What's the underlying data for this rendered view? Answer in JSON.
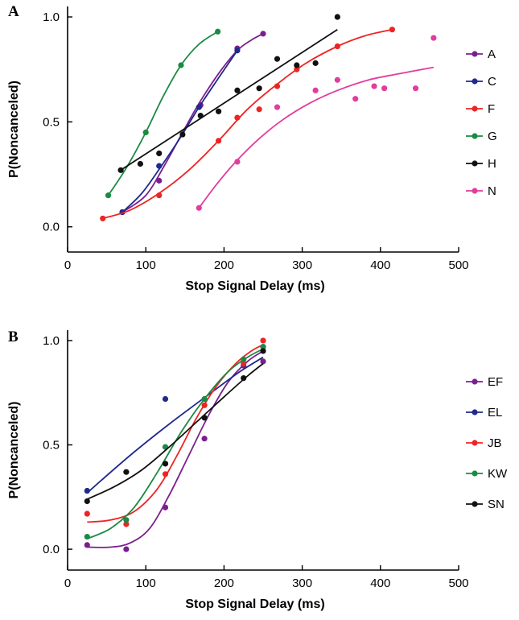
{
  "chart_data": [
    {
      "panel": "A",
      "type": "scatter",
      "xlabel": "Stop Signal Delay (ms)",
      "ylabel": "P(Noncanceled)",
      "xlim": [
        0,
        500
      ],
      "ylim": [
        -0.12,
        1.05
      ],
      "x_ticks": [
        0,
        100,
        200,
        300,
        400,
        500
      ],
      "y_ticks": [
        0.0,
        0.5,
        1.0
      ],
      "x_tick_labels": [
        "0",
        "100",
        "200",
        "300",
        "400",
        "500"
      ],
      "y_tick_labels": [
        "0.0",
        "0.5",
        "1.0"
      ],
      "grid": false,
      "legend_position": "right",
      "series": [
        {
          "name": "A",
          "color": "#7b1f8f",
          "fit": "sigmoid",
          "points": [
            [
              70,
              0.07
            ],
            [
              117,
              0.22
            ],
            [
              170,
              0.58
            ],
            [
              217,
              0.85
            ],
            [
              250,
              0.92
            ]
          ],
          "curve": [
            [
              70,
              0.07
            ],
            [
              100,
              0.15
            ],
            [
              125,
              0.3
            ],
            [
              150,
              0.47
            ],
            [
              170,
              0.6
            ],
            [
              195,
              0.74
            ],
            [
              217,
              0.84
            ],
            [
              235,
              0.89
            ],
            [
              250,
              0.92
            ]
          ]
        },
        {
          "name": "C",
          "color": "#1f2a8c",
          "fit": "sigmoid",
          "points": [
            [
              70,
              0.07
            ],
            [
              117,
              0.29
            ],
            [
              168,
              0.57
            ],
            [
              217,
              0.84
            ]
          ],
          "curve": [
            [
              70,
              0.07
            ],
            [
              95,
              0.16
            ],
            [
              120,
              0.29
            ],
            [
              145,
              0.43
            ],
            [
              168,
              0.57
            ],
            [
              195,
              0.72
            ],
            [
              217,
              0.84
            ]
          ]
        },
        {
          "name": "F",
          "color": "#ee2424",
          "fit": "sigmoid",
          "points": [
            [
              45,
              0.04
            ],
            [
              117,
              0.15
            ],
            [
              193,
              0.41
            ],
            [
              217,
              0.52
            ],
            [
              245,
              0.56
            ],
            [
              268,
              0.67
            ],
            [
              293,
              0.75
            ],
            [
              345,
              0.86
            ],
            [
              415,
              0.94
            ]
          ],
          "curve": [
            [
              45,
              0.04
            ],
            [
              80,
              0.08
            ],
            [
              117,
              0.16
            ],
            [
              155,
              0.27
            ],
            [
              193,
              0.41
            ],
            [
              230,
              0.56
            ],
            [
              268,
              0.68
            ],
            [
              305,
              0.78
            ],
            [
              345,
              0.86
            ],
            [
              380,
              0.91
            ],
            [
              415,
              0.94
            ]
          ]
        },
        {
          "name": "G",
          "color": "#1b8a43",
          "fit": "sigmoid",
          "points": [
            [
              52,
              0.15
            ],
            [
              100,
              0.45
            ],
            [
              145,
              0.77
            ],
            [
              192,
              0.93
            ]
          ],
          "curve": [
            [
              52,
              0.15
            ],
            [
              75,
              0.28
            ],
            [
              100,
              0.45
            ],
            [
              122,
              0.62
            ],
            [
              145,
              0.77
            ],
            [
              168,
              0.87
            ],
            [
              192,
              0.93
            ]
          ]
        },
        {
          "name": "H",
          "color": "#111111",
          "fit": "linear",
          "points": [
            [
              68,
              0.27
            ],
            [
              93,
              0.3
            ],
            [
              117,
              0.35
            ],
            [
              147,
              0.44
            ],
            [
              170,
              0.53
            ],
            [
              193,
              0.55
            ],
            [
              217,
              0.65
            ],
            [
              245,
              0.66
            ],
            [
              268,
              0.8
            ],
            [
              293,
              0.77
            ],
            [
              317,
              0.78
            ],
            [
              345,
              1.0
            ]
          ],
          "curve": [
            [
              68,
              0.27
            ],
            [
              345,
              0.94
            ]
          ]
        },
        {
          "name": "N",
          "color": "#e23c9c",
          "fit": "saturating",
          "points": [
            [
              168,
              0.09
            ],
            [
              217,
              0.31
            ],
            [
              268,
              0.57
            ],
            [
              317,
              0.65
            ],
            [
              345,
              0.7
            ],
            [
              368,
              0.61
            ],
            [
              392,
              0.67
            ],
            [
              405,
              0.66
            ],
            [
              445,
              0.66
            ],
            [
              468,
              0.9
            ]
          ],
          "curve": [
            [
              168,
              0.09
            ],
            [
              190,
              0.2
            ],
            [
              215,
              0.31
            ],
            [
              245,
              0.42
            ],
            [
              275,
              0.51
            ],
            [
              310,
              0.59
            ],
            [
              345,
              0.65
            ],
            [
              385,
              0.7
            ],
            [
              425,
              0.73
            ],
            [
              468,
              0.76
            ]
          ]
        }
      ]
    },
    {
      "panel": "B",
      "type": "scatter",
      "xlabel": "Stop Signal Delay (ms)",
      "ylabel": "P(Noncanceled)",
      "xlim": [
        0,
        500
      ],
      "ylim": [
        -0.1,
        1.05
      ],
      "x_ticks": [
        0,
        100,
        200,
        300,
        400,
        500
      ],
      "y_ticks": [
        0.0,
        0.5,
        1.0
      ],
      "x_tick_labels": [
        "0",
        "100",
        "200",
        "300",
        "400",
        "500"
      ],
      "y_tick_labels": [
        "0.0",
        "0.5",
        "1.0"
      ],
      "grid": false,
      "legend_position": "right",
      "series": [
        {
          "name": "EF",
          "color": "#7b1f8f",
          "fit": "sigmoid",
          "points": [
            [
              25,
              0.02
            ],
            [
              75,
              0.0
            ],
            [
              125,
              0.2
            ],
            [
              175,
              0.53
            ],
            [
              225,
              0.88
            ],
            [
              250,
              0.9
            ]
          ],
          "curve": [
            [
              25,
              0.01
            ],
            [
              55,
              0.01
            ],
            [
              80,
              0.03
            ],
            [
              105,
              0.1
            ],
            [
              130,
              0.26
            ],
            [
              155,
              0.45
            ],
            [
              180,
              0.64
            ],
            [
              205,
              0.8
            ],
            [
              230,
              0.9
            ],
            [
              250,
              0.95
            ]
          ]
        },
        {
          "name": "EL",
          "color": "#1f2a8c",
          "fit": "linear",
          "points": [
            [
              25,
              0.28
            ],
            [
              125,
              0.72
            ],
            [
              250,
              0.97
            ]
          ],
          "curve": [
            [
              25,
              0.27
            ],
            [
              80,
              0.45
            ],
            [
              130,
              0.6
            ],
            [
              180,
              0.74
            ],
            [
              220,
              0.85
            ],
            [
              250,
              0.92
            ]
          ]
        },
        {
          "name": "JB",
          "color": "#ee2424",
          "fit": "sigmoid",
          "points": [
            [
              25,
              0.17
            ],
            [
              75,
              0.12
            ],
            [
              125,
              0.36
            ],
            [
              175,
              0.69
            ],
            [
              225,
              0.89
            ],
            [
              250,
              1.0
            ]
          ],
          "curve": [
            [
              25,
              0.13
            ],
            [
              55,
              0.14
            ],
            [
              85,
              0.18
            ],
            [
              115,
              0.29
            ],
            [
              140,
              0.45
            ],
            [
              165,
              0.63
            ],
            [
              190,
              0.78
            ],
            [
              215,
              0.89
            ],
            [
              235,
              0.95
            ],
            [
              250,
              0.98
            ]
          ]
        },
        {
          "name": "KW",
          "color": "#1b8a43",
          "fit": "sigmoid",
          "points": [
            [
              25,
              0.06
            ],
            [
              75,
              0.14
            ],
            [
              125,
              0.49
            ],
            [
              175,
              0.72
            ],
            [
              225,
              0.91
            ],
            [
              250,
              0.97
            ]
          ],
          "curve": [
            [
              25,
              0.05
            ],
            [
              55,
              0.1
            ],
            [
              85,
              0.2
            ],
            [
              115,
              0.37
            ],
            [
              145,
              0.56
            ],
            [
              175,
              0.72
            ],
            [
              205,
              0.85
            ],
            [
              230,
              0.92
            ],
            [
              250,
              0.96
            ]
          ]
        },
        {
          "name": "SN",
          "color": "#111111",
          "fit": "sigmoid",
          "points": [
            [
              25,
              0.23
            ],
            [
              75,
              0.37
            ],
            [
              125,
              0.41
            ],
            [
              175,
              0.63
            ],
            [
              225,
              0.82
            ],
            [
              250,
              0.95
            ]
          ],
          "curve": [
            [
              25,
              0.24
            ],
            [
              60,
              0.3
            ],
            [
              95,
              0.38
            ],
            [
              130,
              0.49
            ],
            [
              165,
              0.61
            ],
            [
              200,
              0.73
            ],
            [
              230,
              0.83
            ],
            [
              250,
              0.89
            ]
          ]
        }
      ]
    }
  ]
}
